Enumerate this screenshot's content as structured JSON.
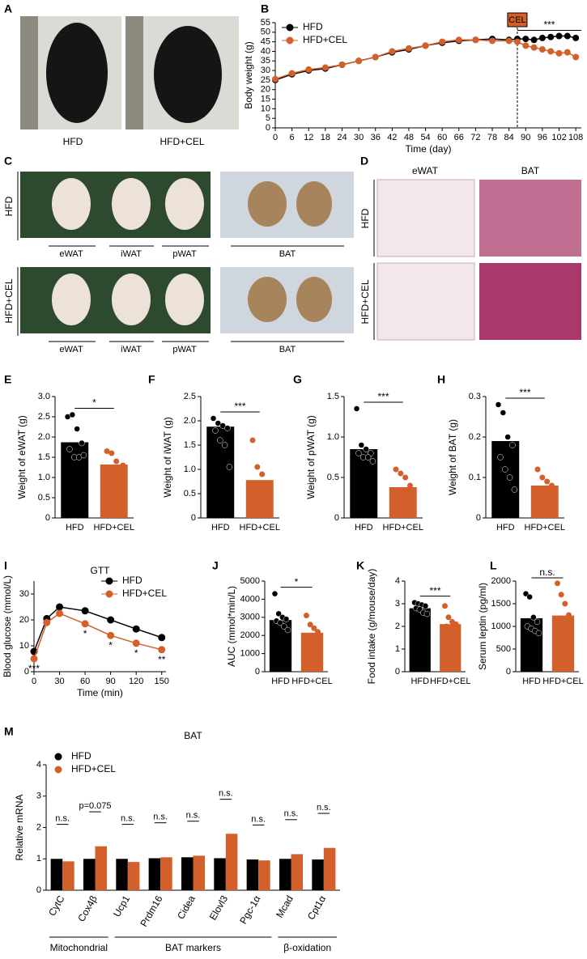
{
  "images": [
    {
      "panel": "A",
      "labels": [
        "HFD",
        "HFD+CEL"
      ]
    },
    {
      "panel": "C",
      "rows": [
        "HFD",
        "HFD+CEL"
      ],
      "tissues": [
        "eWAT",
        "iWAT",
        "pWAT",
        "BAT"
      ]
    },
    {
      "panel": "D",
      "columns": [
        "eWAT",
        "BAT"
      ],
      "rows": [
        "HFD",
        "HFD+CEL"
      ]
    }
  ],
  "chart_data": [
    {
      "type": "line",
      "panel": "B",
      "ylabel": "Body weight (g)",
      "xlabel": "Time (day)",
      "legend": "upper left",
      "x": [
        0,
        6,
        12,
        18,
        24,
        30,
        36,
        42,
        48,
        54,
        60,
        66,
        72,
        78,
        84,
        87,
        90,
        93,
        96,
        99,
        102,
        105,
        108
      ],
      "series": [
        {
          "name": "HFD",
          "color": "#000000",
          "values": [
            25,
            28,
            30,
            31,
            33,
            35,
            37,
            39.5,
            41,
            43,
            44.5,
            45.5,
            46,
            46.5,
            46,
            46.5,
            46.5,
            46,
            47,
            47.5,
            48,
            48,
            47
          ]
        },
        {
          "name": "HFD+CEL",
          "color": "#d35f2a",
          "values": [
            25.5,
            28.5,
            30.5,
            31.5,
            33,
            35,
            37,
            40,
            41.5,
            43,
            45,
            46,
            46,
            45.5,
            45.5,
            45,
            43,
            42,
            41,
            40,
            39,
            39.5,
            37
          ]
        }
      ],
      "xlim": [
        0,
        110
      ],
      "xticks": [
        0,
        6,
        12,
        18,
        24,
        30,
        36,
        42,
        48,
        54,
        60,
        66,
        72,
        78,
        84,
        90,
        96,
        102,
        108
      ],
      "ylim": [
        0,
        55
      ],
      "yticks": [
        0,
        5,
        10,
        15,
        20,
        25,
        30,
        35,
        40,
        45,
        50,
        55
      ],
      "treatment": {
        "label": "CEL",
        "x": 87
      },
      "significance": "***"
    },
    {
      "type": "bar",
      "panel": "E",
      "ylabel": "Weight of eWAT (g)",
      "categories": [
        "HFD",
        "HFD+CEL"
      ],
      "values": [
        1.87,
        1.32
      ],
      "colors": [
        "#000000",
        "#d35f2a"
      ],
      "points": [
        [
          2.5,
          2.55,
          2.2,
          1.85,
          1.7,
          1.5,
          1.5,
          1.55
        ],
        [
          1.65,
          1.6,
          1.4,
          1.25,
          1.1,
          1.1,
          1.05,
          1.3
        ]
      ],
      "ylim": [
        0,
        3
      ],
      "yticks": [
        0,
        0.5,
        {
          "value": 1,
          "label": "1.0"
        },
        1.5,
        {
          "value": 2,
          "label": "2.0"
        },
        2.5,
        {
          "value": 3,
          "label": "3.0"
        }
      ],
      "significance": "*"
    },
    {
      "type": "bar",
      "panel": "F",
      "ylabel": "Weight of iWAT (g)",
      "categories": [
        "HFD",
        "HFD+CEL"
      ],
      "values": [
        1.88,
        0.78
      ],
      "colors": [
        "#000000",
        "#d35f2a"
      ],
      "points": [
        [
          2.05,
          1.95,
          1.9,
          1.85,
          1.8,
          1.6,
          1.5,
          1.05
        ],
        [
          1.6,
          1.05,
          0.9,
          0.6,
          0.5,
          0.35,
          0.3,
          0.3
        ]
      ],
      "ylim": [
        0,
        2.5
      ],
      "yticks": [
        0,
        0.5,
        {
          "value": 1,
          "label": "1.0"
        },
        1.5,
        {
          "value": 2,
          "label": "2.0"
        },
        2.5
      ],
      "significance": "***"
    },
    {
      "type": "bar",
      "panel": "G",
      "ylabel": "Weight of pWAT (g)",
      "categories": [
        "HFD",
        "HFD+CEL"
      ],
      "values": [
        0.85,
        0.38
      ],
      "colors": [
        "#000000",
        "#d35f2a"
      ],
      "points": [
        [
          1.35,
          0.9,
          0.85,
          0.8,
          0.8,
          0.75,
          0.75,
          0.7
        ],
        [
          0.6,
          0.55,
          0.5,
          0.4,
          0.3,
          0.2,
          0.15,
          0.15
        ]
      ],
      "ylim": [
        0,
        1.5
      ],
      "yticks": [
        0,
        0.5,
        {
          "value": 1,
          "label": "1.0"
        },
        1.5
      ],
      "significance": "***"
    },
    {
      "type": "bar",
      "panel": "H",
      "ylabel": "Weight of BAT (g)",
      "categories": [
        "HFD",
        "HFD+CEL"
      ],
      "values": [
        0.19,
        0.08
      ],
      "colors": [
        "#000000",
        "#d35f2a"
      ],
      "points": [
        [
          0.28,
          0.26,
          0.2,
          0.18,
          0.15,
          0.12,
          0.1,
          0.07
        ],
        [
          0.12,
          0.1,
          0.09,
          0.08,
          0.07,
          0.06,
          0.05,
          0.05
        ]
      ],
      "ylim": [
        0,
        0.3
      ],
      "yticks": [
        0,
        0.1,
        0.2,
        0.3
      ],
      "significance": "***"
    },
    {
      "type": "line",
      "panel": "I",
      "title": "GTT",
      "ylabel": "Blood glucose (mmol/L)",
      "xlabel": "Time (min)",
      "legend": "upper right",
      "x": [
        0,
        15,
        30,
        60,
        90,
        120,
        150
      ],
      "series": [
        {
          "name": "HFD",
          "color": "#000000",
          "values": [
            7.8,
            20.5,
            25,
            23.5,
            20,
            16.5,
            13.2
          ]
        },
        {
          "name": "HFD+CEL",
          "color": "#d35f2a",
          "values": [
            5,
            19,
            22.5,
            18.5,
            14,
            11,
            8.5
          ]
        }
      ],
      "xlim": [
        0,
        155
      ],
      "xticks": [
        0,
        30,
        60,
        90,
        120,
        150
      ],
      "ylim": [
        0,
        35
      ],
      "yticks": [
        0,
        10,
        20,
        30
      ],
      "significance": [
        "***",
        null,
        null,
        "*",
        "*",
        "*",
        "**"
      ]
    },
    {
      "type": "bar",
      "panel": "J",
      "ylabel": "AUC (mmol*min/L)",
      "categories": [
        "HFD",
        "HFD+CEL"
      ],
      "values": [
        2850,
        2150
      ],
      "colors": [
        "#000000",
        "#d35f2a"
      ],
      "points": [
        [
          4300,
          3200,
          3000,
          2900,
          2800,
          2700,
          2500,
          2300
        ],
        [
          3100,
          2600,
          2400,
          2200,
          2000,
          1800,
          1700,
          1500
        ]
      ],
      "ylim": [
        0,
        5000
      ],
      "yticks": [
        0,
        1000,
        2000,
        3000,
        4000,
        5000
      ],
      "significance": "*"
    },
    {
      "type": "bar",
      "panel": "K",
      "ylabel": "Food intake (g/mouse/day)",
      "categories": [
        "HFD",
        "HFD+CEL"
      ],
      "values": [
        2.8,
        2.1
      ],
      "colors": [
        "#000000",
        "#d35f2a"
      ],
      "points": [
        [
          3.05,
          3.0,
          2.95,
          2.9,
          2.8,
          2.75,
          2.6,
          2.55
        ],
        [
          2.9,
          2.4,
          2.2,
          2.1,
          2.0,
          1.8,
          1.7,
          1.6
        ]
      ],
      "ylim": [
        0,
        4
      ],
      "yticks": [
        0,
        1,
        2,
        3,
        4
      ],
      "significance": "***"
    },
    {
      "type": "bar",
      "panel": "L",
      "ylabel": "Serum leptin (pg/ml)",
      "categories": [
        "HFD",
        "HFD+CEL"
      ],
      "values": [
        1180,
        1240
      ],
      "colors": [
        "#000000",
        "#d35f2a"
      ],
      "points": [
        [
          1720,
          1650,
          1200,
          1100,
          1000,
          950,
          900,
          850
        ],
        [
          1950,
          1700,
          1500,
          1250,
          1000,
          900,
          750,
          700
        ]
      ],
      "ylim": [
        0,
        2000
      ],
      "yticks": [
        0,
        500,
        1000,
        1500,
        2000
      ],
      "significance": "n.s."
    },
    {
      "type": "grouped_bar",
      "panel": "M",
      "title": "BAT",
      "ylabel": "Relative mRNA",
      "categories": [
        "CytC",
        "Cox4β",
        "Ucp1",
        "Prdm16",
        "Cidea",
        "Elovl3",
        "Pgc-1α",
        "Mcad",
        "Cpt1α"
      ],
      "series": [
        {
          "name": "HFD",
          "color": "#000000",
          "values": [
            1.0,
            1.0,
            1.0,
            1.02,
            1.05,
            1.02,
            0.98,
            1.0,
            0.98
          ]
        },
        {
          "name": "HFD+CEL",
          "color": "#d35f2a",
          "values": [
            0.92,
            1.4,
            0.9,
            1.05,
            1.1,
            1.8,
            0.95,
            1.15,
            1.35
          ]
        }
      ],
      "ylim": [
        0,
        4
      ],
      "yticks": [
        0,
        1,
        2,
        3,
        4
      ],
      "significance": [
        "n.s.",
        "p=0.075",
        "n.s.",
        "n.s.",
        "n.s.",
        "n.s.",
        "n.s.",
        "n.s.",
        "n.s."
      ],
      "groups": [
        {
          "label": "Mitochondrial",
          "members": [
            "CytC",
            "Cox4β"
          ]
        },
        {
          "label": "BAT markers",
          "members": [
            "Ucp1",
            "Prdm16",
            "Cidea",
            "Elovl3",
            "Pgc-1α"
          ]
        },
        {
          "label": "β-oxidation",
          "members": [
            "Mcad",
            "Cpt1α"
          ]
        }
      ]
    }
  ]
}
